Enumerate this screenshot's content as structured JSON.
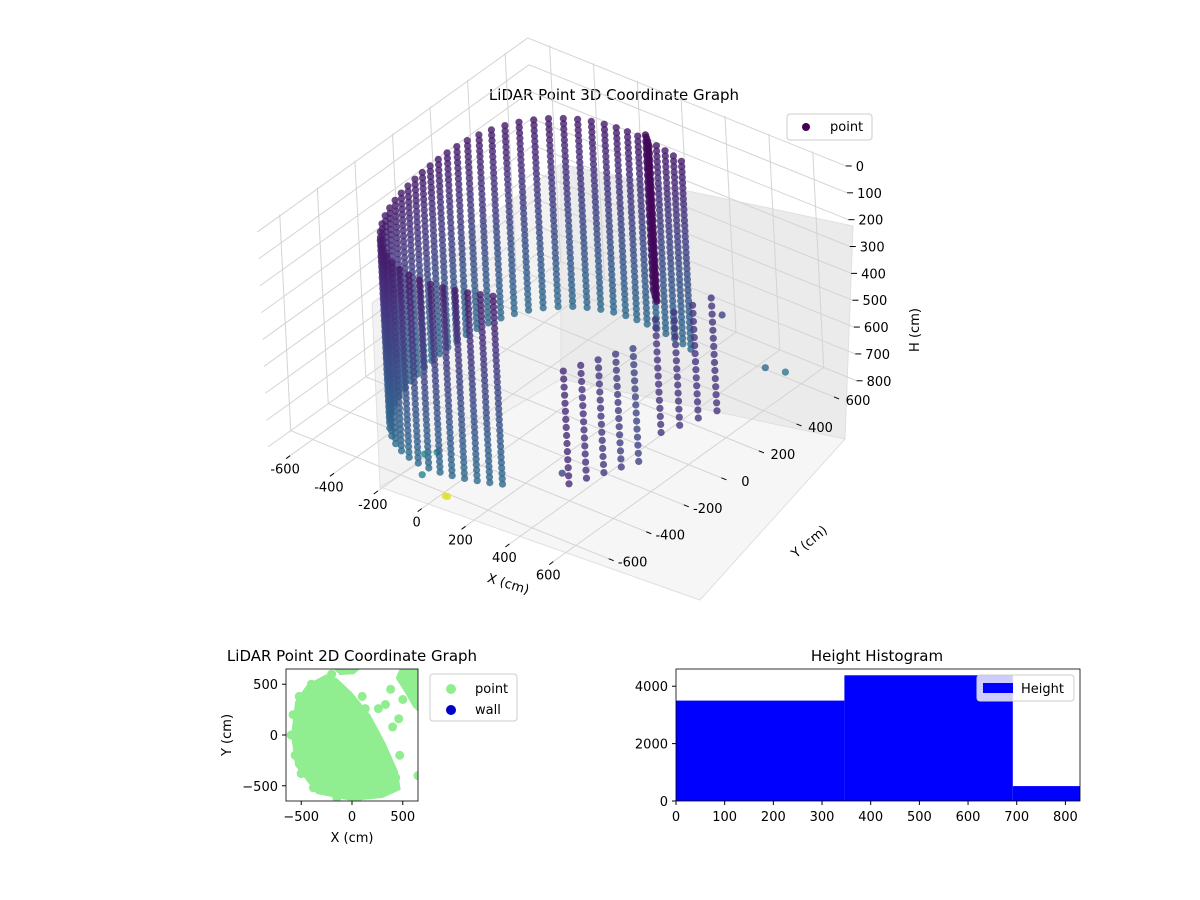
{
  "chart_data": [
    {
      "type": "scatter",
      "title": "LiDAR Point 3D Coordinate Graph",
      "xlabel": "X (cm)",
      "ylabel": "Y (cm)",
      "zlabel": "H (cm)",
      "xticks": [
        "-600",
        "-400",
        "-200",
        "0",
        "200",
        "400",
        "600"
      ],
      "yticks": [
        "-600",
        "-400",
        "-200",
        "0",
        "200",
        "400",
        "600"
      ],
      "zticks": [
        "0",
        "100",
        "200",
        "300",
        "400",
        "500",
        "600",
        "700",
        "800"
      ],
      "zlim": [
        0,
        800
      ],
      "z_axis_inverted": true,
      "colormap": "viridis",
      "legend": {
        "position": "top-right",
        "entries": [
          {
            "label": "point",
            "color": "#440154"
          }
        ]
      },
      "series": [
        {
          "name": "point",
          "description_points": [
            {
              "x": -500,
              "y": 0,
              "h": 50
            },
            {
              "x": 0,
              "y": -550,
              "h": 700
            },
            {
              "x": 520,
              "y": 200,
              "h": 300
            },
            {
              "x": 600,
              "y": 500,
              "h": 650
            },
            {
              "x": 550,
              "y": -500,
              "h": 780
            }
          ]
        }
      ]
    },
    {
      "type": "scatter",
      "title": "LiDAR Point 2D Coordinate Graph",
      "xlabel": "X (cm)",
      "ylabel": "Y (cm)",
      "xticks": [
        "−500",
        "0",
        "500"
      ],
      "yticks": [
        "500",
        "0",
        "−500"
      ],
      "xlim": [
        -650,
        650
      ],
      "ylim": [
        -650,
        650
      ],
      "legend": {
        "position": "outside-right",
        "entries": [
          {
            "label": "point",
            "color": "#90ee90"
          },
          {
            "label": "wall",
            "color": "#0000cc"
          }
        ]
      },
      "series": [
        {
          "name": "point",
          "points": [
            [
              -600,
              0
            ],
            [
              -580,
              200
            ],
            [
              -560,
              -200
            ],
            [
              -520,
              380
            ],
            [
              -500,
              -380
            ],
            [
              -400,
              500
            ],
            [
              -380,
              -520
            ],
            [
              -200,
              600
            ],
            [
              -150,
              -620
            ],
            [
              0,
              640
            ],
            [
              50,
              -630
            ],
            [
              250,
              -560
            ],
            [
              380,
              -500
            ],
            [
              430,
              -420
            ],
            [
              470,
              -200
            ],
            [
              400,
              80
            ],
            [
              330,
              300
            ],
            [
              100,
              380
            ],
            [
              130,
              260
            ],
            [
              260,
              260
            ],
            [
              380,
              450
            ],
            [
              460,
              160
            ],
            [
              500,
              350
            ],
            [
              550,
              500
            ],
            [
              620,
              550
            ],
            [
              640,
              300
            ],
            [
              650,
              -400
            ]
          ]
        },
        {
          "name": "wall",
          "points": []
        }
      ]
    },
    {
      "type": "bar",
      "title": "Height Histogram",
      "xticks": [
        "0",
        "100",
        "200",
        "300",
        "400",
        "500",
        "600",
        "700",
        "800"
      ],
      "yticks": [
        "0",
        "2000",
        "4000"
      ],
      "xlim": [
        0,
        830
      ],
      "ylim": [
        0,
        4600
      ],
      "bin_edges": [
        0,
        346,
        692,
        830
      ],
      "counts": [
        3500,
        4380,
        520
      ],
      "color": "#0000ff",
      "legend": {
        "position": "top-right",
        "entries": [
          {
            "label": "Height",
            "color": "#0000ff"
          }
        ]
      }
    }
  ]
}
